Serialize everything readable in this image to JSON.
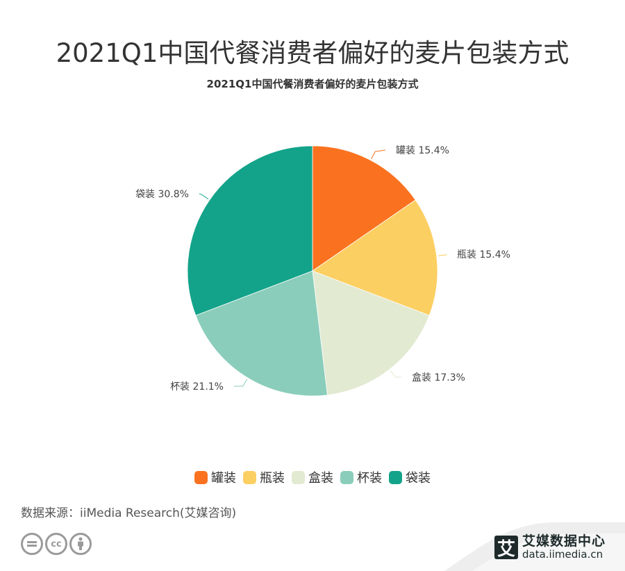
{
  "header": {
    "title": "2021Q1中国代餐消费者偏好的麦片包装方式",
    "subtitle": "2021Q1中国代餐消费者偏好的麦片包装方式"
  },
  "chart_data": {
    "type": "pie",
    "title": "2021Q1中国代餐消费者偏好的麦片包装方式",
    "categories": [
      "罐装",
      "瓶装",
      "盒装",
      "杯装",
      "袋装"
    ],
    "values": [
      15.4,
      15.4,
      17.3,
      21.1,
      30.8
    ],
    "unit": "%",
    "colors": [
      "#FA7220",
      "#FCCF62",
      "#E2EAD2",
      "#8ACDBA",
      "#13A38A"
    ],
    "labels": [
      "罐装 15.4%",
      "瓶装 15.4%",
      "盒装 17.3%",
      "杯装 21.1%",
      "袋装 30.8%"
    ],
    "start_angle": "12 o'clock, clockwise",
    "legend_position": "bottom"
  },
  "legend": {
    "items": [
      {
        "label": "罐装",
        "color": "#FA7220"
      },
      {
        "label": "瓶装",
        "color": "#FCCF62"
      },
      {
        "label": "盒装",
        "color": "#E2EAD2"
      },
      {
        "label": "杯装",
        "color": "#8ACDBA"
      },
      {
        "label": "袋装",
        "color": "#13A38A"
      }
    ]
  },
  "footer": {
    "source": "数据来源：iiMedia Research(艾媒咨询)",
    "license_icons": [
      "nd-icon",
      "cc-icon",
      "by-icon"
    ],
    "brand_logo_char": "艾",
    "brand_name": "艾媒数据中心",
    "brand_url": "data.iimedia.cn"
  }
}
